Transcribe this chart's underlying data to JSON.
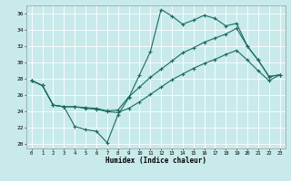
{
  "xlabel": "Humidex (Indice chaleur)",
  "bg_color": "#c8eaea",
  "grid_color": "#ffffff",
  "line_color": "#1a6b5e",
  "xlim": [
    -0.5,
    23.5
  ],
  "ylim": [
    19.5,
    37.0
  ],
  "xticks": [
    0,
    1,
    2,
    3,
    4,
    5,
    6,
    7,
    8,
    9,
    10,
    11,
    12,
    13,
    14,
    15,
    16,
    17,
    18,
    19,
    20,
    21,
    22,
    23
  ],
  "yticks": [
    20,
    22,
    24,
    26,
    28,
    30,
    32,
    34,
    36
  ],
  "line1_x": [
    0,
    1,
    2,
    3,
    4,
    5,
    6,
    7,
    8,
    9,
    10,
    11,
    12,
    13,
    14,
    15,
    16,
    17,
    18,
    19,
    20,
    21,
    22,
    23
  ],
  "line1_y": [
    27.8,
    27.2,
    24.8,
    24.6,
    22.2,
    21.8,
    21.6,
    20.2,
    23.6,
    25.7,
    28.5,
    31.3,
    36.5,
    35.7,
    34.7,
    35.2,
    35.8,
    35.4,
    34.5,
    34.8,
    32.0,
    30.3,
    28.3,
    28.5
  ],
  "line2_x": [
    0,
    1,
    2,
    3,
    4,
    5,
    6,
    7,
    8,
    9,
    10,
    11,
    12,
    13,
    14,
    15,
    16,
    17,
    18,
    19,
    20,
    21,
    22,
    23
  ],
  "line2_y": [
    27.8,
    27.2,
    24.8,
    24.6,
    24.6,
    24.5,
    24.4,
    24.1,
    24.2,
    25.8,
    27.0,
    28.2,
    29.2,
    30.2,
    31.2,
    31.8,
    32.5,
    33.0,
    33.5,
    34.2,
    32.0,
    30.3,
    28.3,
    28.5
  ],
  "line3_x": [
    0,
    1,
    2,
    3,
    4,
    5,
    6,
    7,
    8,
    9,
    10,
    11,
    12,
    13,
    14,
    15,
    16,
    17,
    18,
    19,
    20,
    21,
    22,
    23
  ],
  "line3_y": [
    27.8,
    27.2,
    24.8,
    24.6,
    24.6,
    24.4,
    24.3,
    24.0,
    23.9,
    24.4,
    25.2,
    26.1,
    27.0,
    27.9,
    28.6,
    29.3,
    29.9,
    30.4,
    31.0,
    31.5,
    30.3,
    29.0,
    27.8,
    28.5
  ]
}
